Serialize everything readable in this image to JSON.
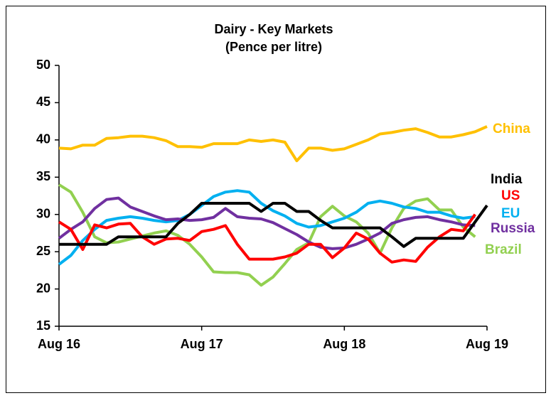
{
  "chart_data": {
    "type": "line",
    "title": "Dairy - Key Markets",
    "subtitle": "(Pence per litre)",
    "categories": [
      "Aug 16",
      null,
      null,
      null,
      null,
      null,
      null,
      null,
      null,
      null,
      null,
      null,
      "Aug 17",
      null,
      null,
      null,
      null,
      null,
      null,
      null,
      null,
      null,
      null,
      null,
      "Aug 18",
      null,
      null,
      null,
      null,
      null,
      null,
      null,
      null,
      null,
      null,
      null,
      "Aug 19"
    ],
    "ylim": [
      15,
      50
    ],
    "yticks": [
      15,
      20,
      25,
      30,
      35,
      40,
      45,
      50
    ],
    "grid": false,
    "series": [
      {
        "name": "China",
        "color": "#ffc000",
        "values": [
          38.9,
          38.8,
          39.3,
          39.3,
          40.2,
          40.3,
          40.5,
          40.5,
          40.3,
          39.9,
          39.1,
          39.1,
          39.0,
          39.5,
          39.5,
          39.5,
          40.0,
          39.8,
          40.0,
          39.7,
          37.2,
          38.9,
          38.9,
          38.6,
          38.8,
          39.4,
          40.0,
          40.8,
          41.0,
          41.3,
          41.5,
          41.0,
          40.4,
          40.4,
          40.7,
          41.1,
          41.8
        ]
      },
      {
        "name": "Brazil",
        "color": "#92d050",
        "values": [
          34,
          33,
          30.3,
          27,
          26.2,
          26.3,
          26.7,
          27.1,
          27.5,
          27.8,
          27.2,
          26,
          24.3,
          22.3,
          22.2,
          22.2,
          21.9,
          20.5,
          21.6,
          23.4,
          25.3,
          26.2,
          29.7,
          31.1,
          29.8,
          29,
          27.5,
          24.8,
          28.2,
          30.8,
          31.8,
          32.1,
          30.6,
          30.6,
          28.3,
          27,
          null
        ]
      },
      {
        "name": "EU",
        "color": "#00b0f0",
        "values": [
          23.3,
          24.5,
          26.5,
          28,
          29.2,
          29.5,
          29.7,
          29.5,
          29.2,
          29,
          29.2,
          30,
          31.2,
          32.4,
          33,
          33.2,
          33,
          31.5,
          30.5,
          29.8,
          28.8,
          28.3,
          28.5,
          29,
          29.5,
          30.3,
          31.5,
          31.8,
          31.5,
          31,
          30.8,
          30.3,
          30.3,
          29.8,
          29.5,
          29.7,
          null
        ]
      },
      {
        "name": "Russia",
        "color": "#7030a0",
        "values": [
          26.8,
          28,
          29,
          30.8,
          32,
          32.2,
          31,
          30.4,
          29.8,
          29.3,
          29.4,
          29.2,
          29.3,
          29.6,
          30.8,
          29.7,
          29.5,
          29.4,
          28.9,
          28.1,
          27.3,
          26.3,
          25.6,
          25.4,
          25.5,
          26,
          26.7,
          27.5,
          28.8,
          29.3,
          29.6,
          29.7,
          29.3,
          29,
          28.6,
          28.5,
          null
        ]
      },
      {
        "name": "US",
        "color": "#ff0000",
        "values": [
          29,
          28,
          25.3,
          28.6,
          28.2,
          28.7,
          28.8,
          27,
          26,
          26.7,
          26.8,
          26.5,
          27.7,
          28,
          28.5,
          26,
          24,
          24,
          24,
          24.3,
          24.8,
          26,
          26,
          24.2,
          25.5,
          27.5,
          26.7,
          24.8,
          23.6,
          23.9,
          23.7,
          25.6,
          27,
          28,
          27.8,
          30,
          null
        ]
      },
      {
        "name": "India",
        "color": "#000000",
        "values": [
          26,
          26,
          26,
          26,
          26,
          27,
          27,
          27,
          27,
          27,
          28.8,
          30,
          31.5,
          31.5,
          31.5,
          31.5,
          31.5,
          30.4,
          31.5,
          31.5,
          30.4,
          30.4,
          29.2,
          28.2,
          28.2,
          28.2,
          28.2,
          28.2,
          27,
          25.7,
          26.8,
          26.8,
          26.8,
          26.8,
          26.8,
          29,
          31.2
        ]
      }
    ]
  }
}
